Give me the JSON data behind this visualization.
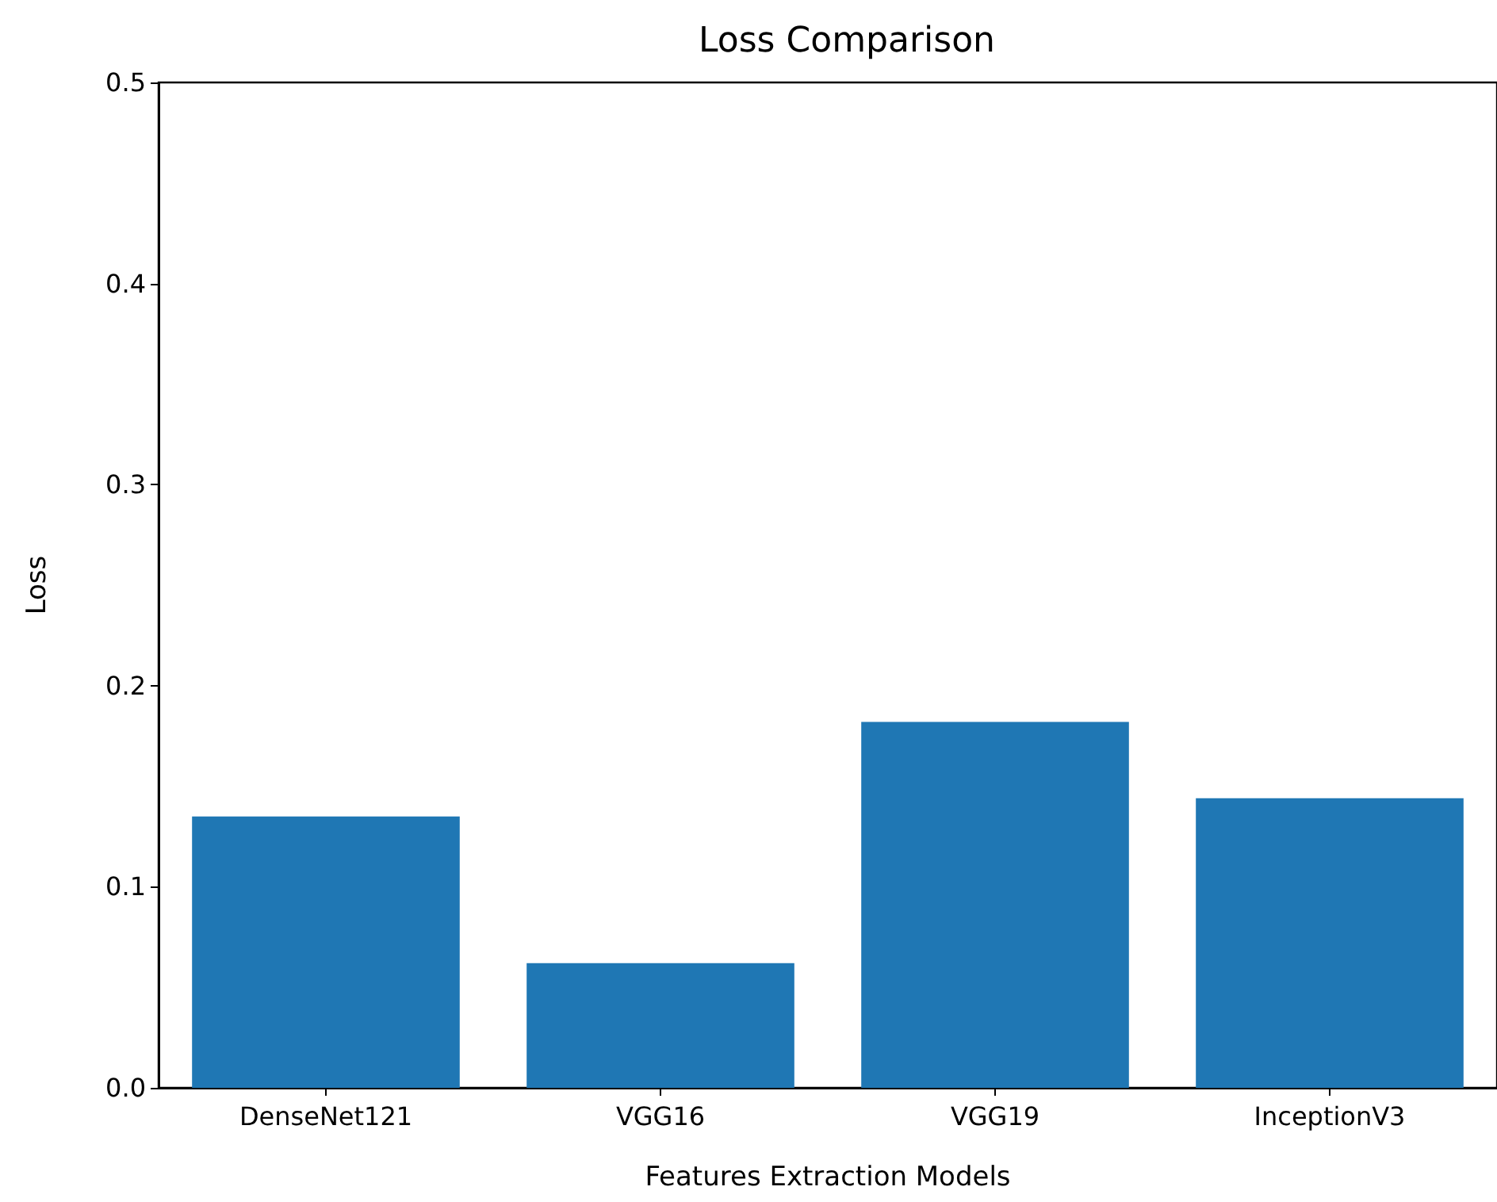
{
  "chart_data": {
    "type": "bar",
    "title": "Loss Comparison",
    "xlabel": "Features Extraction Models",
    "ylabel": "Loss",
    "categories": [
      "DenseNet121",
      "VGG16",
      "VGG19",
      "InceptionV3"
    ],
    "values": [
      0.135,
      0.062,
      0.182,
      0.144
    ],
    "color": "#1f77b4",
    "ylim": [
      0,
      0.5
    ],
    "yticks": [
      {
        "value": 0,
        "label": "0.0"
      },
      {
        "value": 0.1,
        "label": "0.1"
      },
      {
        "value": 0.2,
        "label": "0.2"
      },
      {
        "value": 0.3,
        "label": "0.3"
      },
      {
        "value": 0.4,
        "label": "0.4"
      },
      {
        "value": 0.5,
        "label": "0.5"
      }
    ],
    "grid": false
  }
}
